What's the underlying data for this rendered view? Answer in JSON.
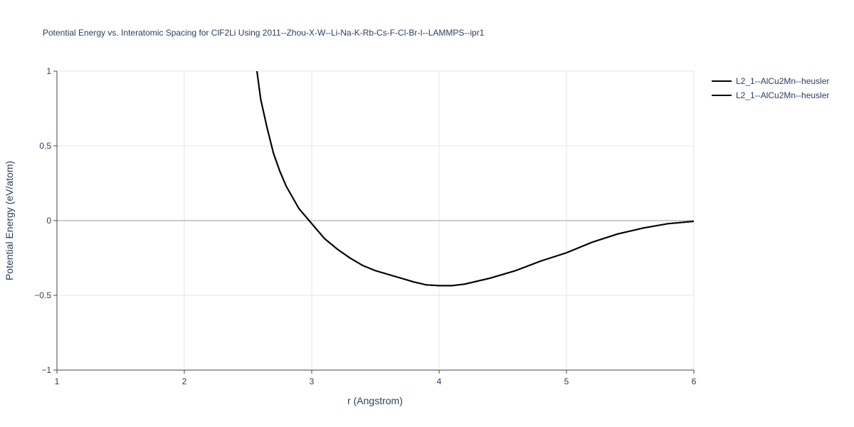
{
  "chart_data": {
    "type": "line",
    "title": "Potential Energy vs. Interatomic Spacing for ClF2Li Using 2011--Zhou-X-W--Li-Na-K-Rb-Cs-F-Cl-Br-I--LAMMPS--ipr1",
    "x_label": "r (Angstrom)",
    "y_label": "Potential Energy (eV/atom)",
    "x": [
      2.57,
      2.6,
      2.65,
      2.7,
      2.75,
      2.8,
      2.9,
      3.0,
      3.1,
      3.2,
      3.3,
      3.4,
      3.5,
      3.6,
      3.7,
      3.8,
      3.9,
      4.0,
      4.1,
      4.2,
      4.4,
      4.6,
      4.8,
      5.0,
      5.2,
      5.4,
      5.6,
      5.8,
      6.0
    ],
    "series": [
      {
        "name": "L2_1--AlCu2Mn--heusler",
        "color": "#000000",
        "values": [
          1.0,
          0.81,
          0.62,
          0.45,
          0.33,
          0.23,
          0.08,
          -0.02,
          -0.12,
          -0.19,
          -0.25,
          -0.3,
          -0.335,
          -0.36,
          -0.385,
          -0.41,
          -0.43,
          -0.435,
          -0.435,
          -0.425,
          -0.385,
          -0.335,
          -0.27,
          -0.215,
          -0.145,
          -0.09,
          -0.05,
          -0.02,
          -0.005
        ]
      },
      {
        "name": "L2_1--AlCu2Mn--heusler",
        "color": "#000000",
        "values": [
          1.0,
          0.81,
          0.62,
          0.45,
          0.33,
          0.23,
          0.08,
          -0.02,
          -0.12,
          -0.19,
          -0.25,
          -0.3,
          -0.335,
          -0.36,
          -0.385,
          -0.41,
          -0.43,
          -0.435,
          -0.435,
          -0.425,
          -0.385,
          -0.335,
          -0.27,
          -0.215,
          -0.145,
          -0.09,
          -0.05,
          -0.02,
          -0.005
        ]
      }
    ],
    "xlim": [
      1,
      6
    ],
    "xticks": [
      1,
      2,
      3,
      4,
      5,
      6
    ],
    "ylim": [
      -1,
      1
    ],
    "yticks": [
      {
        "value": -1,
        "label": "−1"
      },
      {
        "value": -0.5,
        "label": "−0.5"
      },
      0,
      0.5,
      1
    ],
    "grid": true,
    "legend": "right"
  }
}
